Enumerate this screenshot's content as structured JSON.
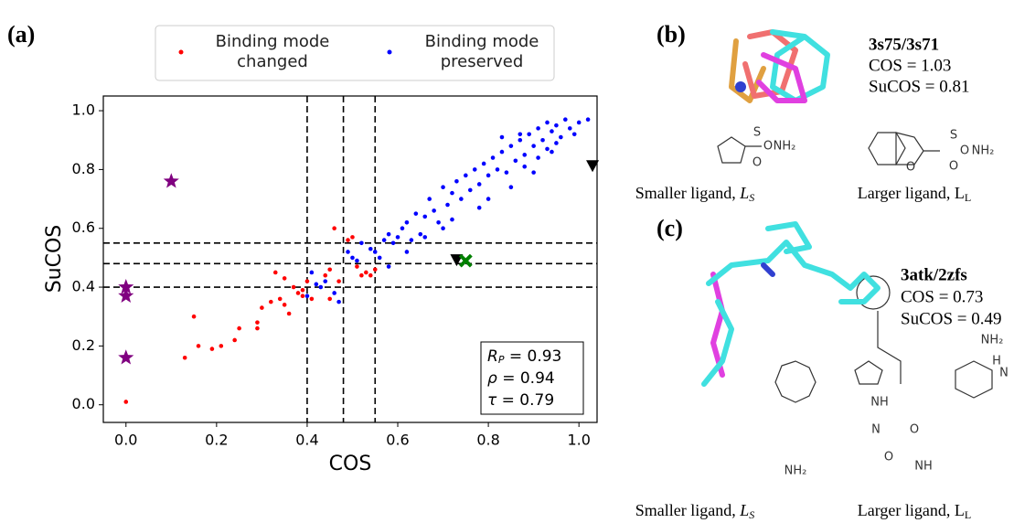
{
  "chart_data": {
    "type": "scatter",
    "panel_label": "(a)",
    "x_label": "COS",
    "y_label": "SuCOS",
    "xlim": [
      -0.05,
      1.04
    ],
    "ylim": [
      -0.06,
      1.05
    ],
    "xticks": [
      {
        "value": 0,
        "label": "0.0"
      },
      0.2,
      0.4,
      0.6,
      0.8,
      {
        "value": 1,
        "label": "1.0"
      }
    ],
    "yticks": [
      {
        "value": 0,
        "label": "0.0"
      },
      0.2,
      0.4,
      0.6,
      0.8,
      {
        "value": 1,
        "label": "1.0"
      }
    ],
    "vlines": [
      0.4,
      0.48,
      0.55
    ],
    "hlines": [
      0.4,
      0.48,
      0.55
    ],
    "series": [
      {
        "name": "Binding mode changed",
        "color": "#ff0000",
        "x": [
          0,
          0.13,
          0.15,
          0.16,
          0.19,
          0.21,
          0.24,
          0.25,
          0.29,
          0.29,
          0.3,
          0.32,
          0.34,
          0.33,
          0.35,
          0.37,
          0.36,
          0.35,
          0.38,
          0.39,
          0.4,
          0.41,
          0.44,
          0.45,
          0.46,
          0.47,
          0.5,
          0.51,
          0.52,
          0.53,
          0.54,
          0.55,
          0.49,
          0.45,
          0.39
        ],
        "values": [
          0.01,
          0.16,
          0.3,
          0.2,
          0.19,
          0.2,
          0.22,
          0.26,
          0.28,
          0.26,
          0.33,
          0.35,
          0.36,
          0.45,
          0.43,
          0.4,
          0.31,
          0.34,
          0.38,
          0.39,
          0.42,
          0.36,
          0.44,
          0.46,
          0.6,
          0.42,
          0.57,
          0.47,
          0.44,
          0.45,
          0.44,
          0.46,
          0.56,
          0.36,
          0.37
        ]
      },
      {
        "name": "Binding mode preserved",
        "color": "#0000ff",
        "x": [
          0.4,
          0.41,
          0.42,
          0.43,
          0.44,
          0.46,
          0.47,
          0.49,
          0.5,
          0.51,
          0.52,
          0.54,
          0.55,
          0.56,
          0.57,
          0.58,
          0.59,
          0.6,
          0.61,
          0.62,
          0.63,
          0.64,
          0.65,
          0.66,
          0.67,
          0.68,
          0.69,
          0.7,
          0.71,
          0.72,
          0.73,
          0.74,
          0.75,
          0.76,
          0.77,
          0.78,
          0.79,
          0.8,
          0.81,
          0.82,
          0.83,
          0.84,
          0.85,
          0.86,
          0.87,
          0.88,
          0.89,
          0.9,
          0.91,
          0.92,
          0.93,
          0.94,
          0.95,
          0.96,
          0.97,
          0.98,
          0.99,
          1.0,
          1.02,
          0.85,
          0.88,
          0.91,
          0.93,
          0.95,
          0.8,
          0.78,
          0.72,
          0.7,
          0.66,
          0.62,
          0.58,
          0.9,
          0.94,
          0.87,
          0.83
        ],
        "values": [
          0.37,
          0.45,
          0.41,
          0.4,
          0.42,
          0.38,
          0.35,
          0.52,
          0.5,
          0.49,
          0.55,
          0.53,
          0.52,
          0.5,
          0.56,
          0.58,
          0.55,
          0.57,
          0.6,
          0.62,
          0.56,
          0.65,
          0.58,
          0.64,
          0.7,
          0.66,
          0.62,
          0.74,
          0.68,
          0.72,
          0.76,
          0.7,
          0.78,
          0.73,
          0.8,
          0.75,
          0.82,
          0.78,
          0.84,
          0.8,
          0.86,
          0.79,
          0.88,
          0.83,
          0.9,
          0.85,
          0.92,
          0.88,
          0.94,
          0.9,
          0.96,
          0.93,
          0.95,
          0.91,
          0.97,
          0.94,
          0.92,
          0.96,
          0.97,
          0.74,
          0.81,
          0.84,
          0.87,
          0.89,
          0.7,
          0.67,
          0.63,
          0.6,
          0.57,
          0.52,
          0.47,
          0.79,
          0.86,
          0.92,
          0.91
        ]
      }
    ],
    "highlights": [
      {
        "marker": "star",
        "color": "#800080",
        "x": [
          0.1,
          0,
          0,
          0
        ],
        "values": [
          0.76,
          0.4,
          0.37,
          0.16
        ]
      },
      {
        "marker": "triangle-down",
        "color": "#000000",
        "x": [
          1.03,
          0.73
        ],
        "values": [
          0.81,
          0.49
        ]
      },
      {
        "marker": "cross",
        "color": "#008000",
        "x": [
          0.75
        ],
        "values": [
          0.49
        ]
      }
    ],
    "stats": [
      {
        "symbol": "R",
        "sub": "P",
        "rest": " = 0.93"
      },
      {
        "symbol": "ρ",
        "sub": "",
        "rest": " = 0.94"
      },
      {
        "symbol": "τ",
        "sub": "",
        "rest": " = 0.79"
      }
    ]
  },
  "panels": {
    "b": {
      "label": "(b)",
      "title": "3s75/3s71",
      "cos": "COS = 1.03",
      "sucos": "SuCOS = 0.81",
      "smaller": {
        "text": "Smaller ligand, ",
        "symbol": "L",
        "sub": "S"
      },
      "larger": {
        "text": "Larger ligand, ",
        "symbol": "L",
        "sub": "L"
      },
      "atoms": [
        "S",
        "O",
        "O",
        "NH₂",
        "S",
        "O",
        "O",
        "O",
        "NH₂"
      ]
    },
    "c": {
      "label": "(c)",
      "title": "3atk/2zfs",
      "cos": "COS = 0.73",
      "sucos": "SuCOS = 0.49",
      "smaller": {
        "text": "Smaller ligand, ",
        "symbol": "L",
        "sub": "S"
      },
      "larger": {
        "text": "Larger ligand, ",
        "symbol": "L",
        "sub": "L"
      },
      "atoms": [
        "NH₂",
        "NH",
        "O",
        "N",
        "O",
        "NH",
        "NH₂",
        "N",
        "H"
      ]
    }
  }
}
